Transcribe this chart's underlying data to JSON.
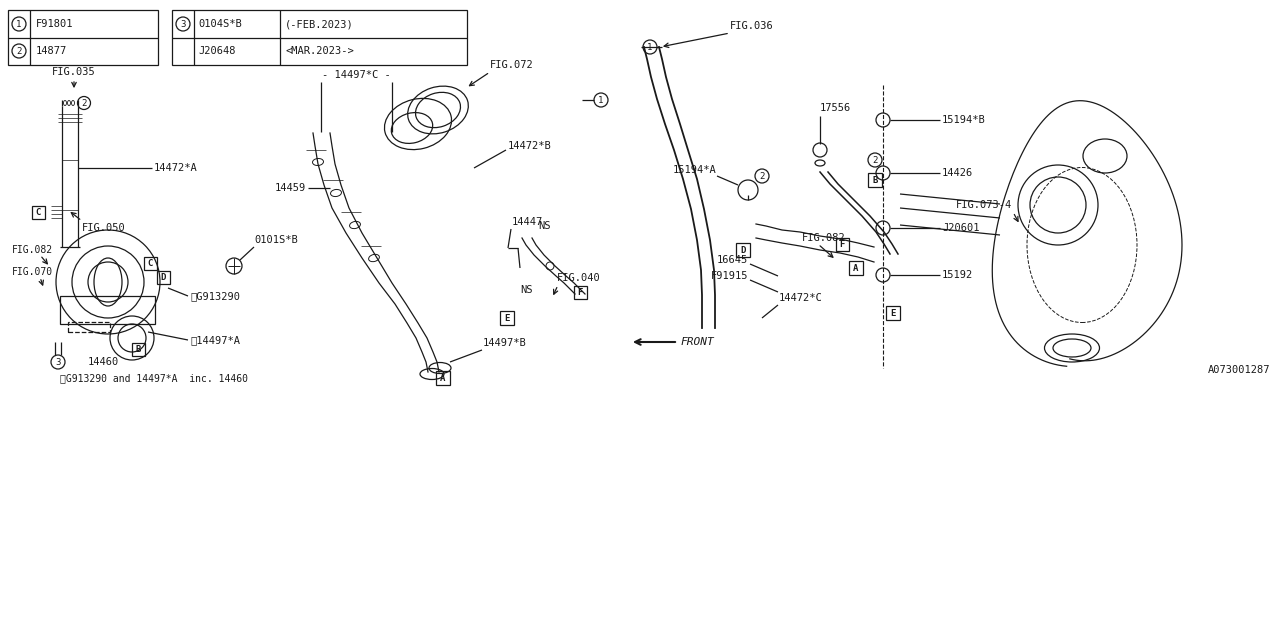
{
  "bg_color": "#ffffff",
  "line_color": "#1a1a1a",
  "fig_width": 12.8,
  "fig_height": 6.4,
  "dpi": 100,
  "legend1": [
    [
      "1",
      "F91801"
    ],
    [
      "2",
      "14877"
    ]
  ],
  "legend2": [
    [
      "3",
      "0104S*B",
      "(-FEB.2023)"
    ],
    [
      "",
      "J20648",
      "<MAR.2023->"
    ]
  ],
  "note_text": "※G913290 and 14497*A  inc. 14460",
  "labels": {
    "fig035": "FIG.035",
    "fig036": "FIG.036",
    "fig040": "FIG.040",
    "fig050": "FIG.050",
    "fig070": "FIG.070",
    "fig072": "FIG.072",
    "fig073_4": "FIG.073-4",
    "fig082": "FIG.082",
    "p14447": "14447",
    "p14459": "14459",
    "p14460": "14460",
    "p14472A": "14472*A",
    "p14472B": "14472*B",
    "p14472C": "14472*C",
    "p14497A": "※14497*A",
    "p14497B": "14497*B",
    "p14497C": "14497*C",
    "p14426": "14426",
    "p15192": "15192",
    "p15194A": "15194*A",
    "p15194B": "15194*B",
    "p17556": "17556",
    "pJ20601": "J20601",
    "p16645": "16645",
    "pF91915": "F91915",
    "p0101SB": "0101S*B",
    "pG913290": "※G913290",
    "front": "FRONT",
    "diagram_id": "A073001287"
  }
}
